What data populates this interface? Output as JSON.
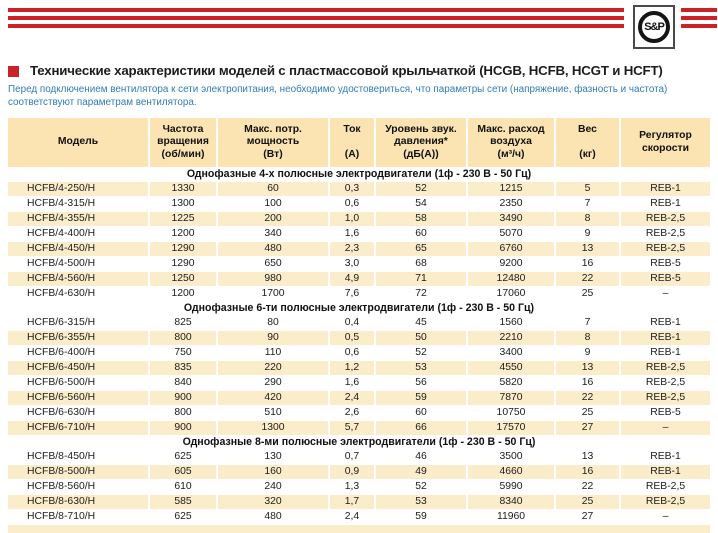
{
  "page": {
    "logo_text": "S&P",
    "title": "Технические характеристики моделей с пластмассовой крыльчаткой (HCGB, HCFB, HCGT и HCFT)",
    "warning": "Перед подключением вентилятора к сети электропитания, необходимо удостовериться, что параметры сети (напряжение, фазность и частота) соответствуют параметрам вентилятора."
  },
  "colors": {
    "brand_red": "#cc2227",
    "table_header_bg": "#fbe3b2",
    "row_cream_bg": "#fcedca",
    "warning_text": "#2e7db6"
  },
  "table": {
    "headers": [
      "Модель",
      "Частота\nвращения\n(об/мин)",
      "Макс. потр.\nмощность\n(Вт)",
      "Ток\n\n(А)",
      "Уровень звук.\nдавления*\n(дБ(А))",
      "Макс. расход\nвоздуха\n(м³/ч)",
      "Вес\n\n(кг)",
      "Регулятор\nскорости"
    ],
    "sections": [
      {
        "title": "Однофазные 4-х полюсные электродвигатели (1ф - 230 В - 50 Гц)",
        "rows": [
          [
            "HCFB/4-250/H",
            "1330",
            "60",
            "0,3",
            "52",
            "1215",
            "5",
            "REB-1"
          ],
          [
            "HCFB/4-315/H",
            "1300",
            "100",
            "0,6",
            "54",
            "2350",
            "7",
            "REB-1"
          ],
          [
            "HCFB/4-355/H",
            "1225",
            "200",
            "1,0",
            "58",
            "3490",
            "8",
            "REB-2,5"
          ],
          [
            "HCFB/4-400/H",
            "1200",
            "340",
            "1,6",
            "60",
            "5070",
            "9",
            "REB-2,5"
          ],
          [
            "HCFB/4-450/H",
            "1290",
            "480",
            "2,3",
            "65",
            "6760",
            "13",
            "REB-2,5"
          ],
          [
            "HCFB/4-500/H",
            "1290",
            "650",
            "3,0",
            "68",
            "9200",
            "16",
            "REB-5"
          ],
          [
            "HCFB/4-560/H",
            "1250",
            "980",
            "4,9",
            "71",
            "12480",
            "22",
            "REB-5"
          ],
          [
            "HCFB/4-630/H",
            "1200",
            "1700",
            "7,6",
            "72",
            "17060",
            "25",
            "–"
          ]
        ]
      },
      {
        "title": "Однофазные 6-ти полюсные электродвигатели (1ф - 230 В - 50 Гц)",
        "rows": [
          [
            "HCFB/6-315/H",
            "825",
            "80",
            "0,4",
            "45",
            "1560",
            "7",
            "REB-1"
          ],
          [
            "HCFB/6-355/H",
            "800",
            "90",
            "0,5",
            "50",
            "2210",
            "8",
            "REB-1"
          ],
          [
            "HCFB/6-400/H",
            "750",
            "110",
            "0,6",
            "52",
            "3400",
            "9",
            "REB-1"
          ],
          [
            "HCFB/6-450/H",
            "835",
            "220",
            "1,2",
            "53",
            "4550",
            "13",
            "REB-2,5"
          ],
          [
            "HCFB/6-500/H",
            "840",
            "290",
            "1,6",
            "56",
            "5820",
            "16",
            "REB-2,5"
          ],
          [
            "HCFB/6-560/H",
            "900",
            "420",
            "2,4",
            "59",
            "7870",
            "22",
            "REB-2,5"
          ],
          [
            "HCFB/6-630/H",
            "800",
            "510",
            "2,6",
            "60",
            "10750",
            "25",
            "REB-5"
          ],
          [
            "HCFB/6-710/H",
            "900",
            "1300",
            "5,7",
            "66",
            "17570",
            "27",
            "–"
          ]
        ]
      },
      {
        "title": "Однофазные 8-ми полюсные электродвигатели (1ф - 230 В - 50 Гц)",
        "rows": [
          [
            "HCFB/8-450/H",
            "625",
            "130",
            "0,7",
            "46",
            "3500",
            "13",
            "REB-1"
          ],
          [
            "HCFB/8-500/H",
            "605",
            "160",
            "0,9",
            "49",
            "4660",
            "16",
            "REB-1"
          ],
          [
            "HCFB/8-560/H",
            "610",
            "240",
            "1,3",
            "52",
            "5990",
            "22",
            "REB-2,5"
          ],
          [
            "HCFB/8-630/H",
            "585",
            "320",
            "1,7",
            "53",
            "8340",
            "25",
            "REB-2,5"
          ],
          [
            "HCFB/8-710/H",
            "625",
            "480",
            "2,4",
            "59",
            "11960",
            "27",
            "–"
          ]
        ]
      }
    ]
  }
}
